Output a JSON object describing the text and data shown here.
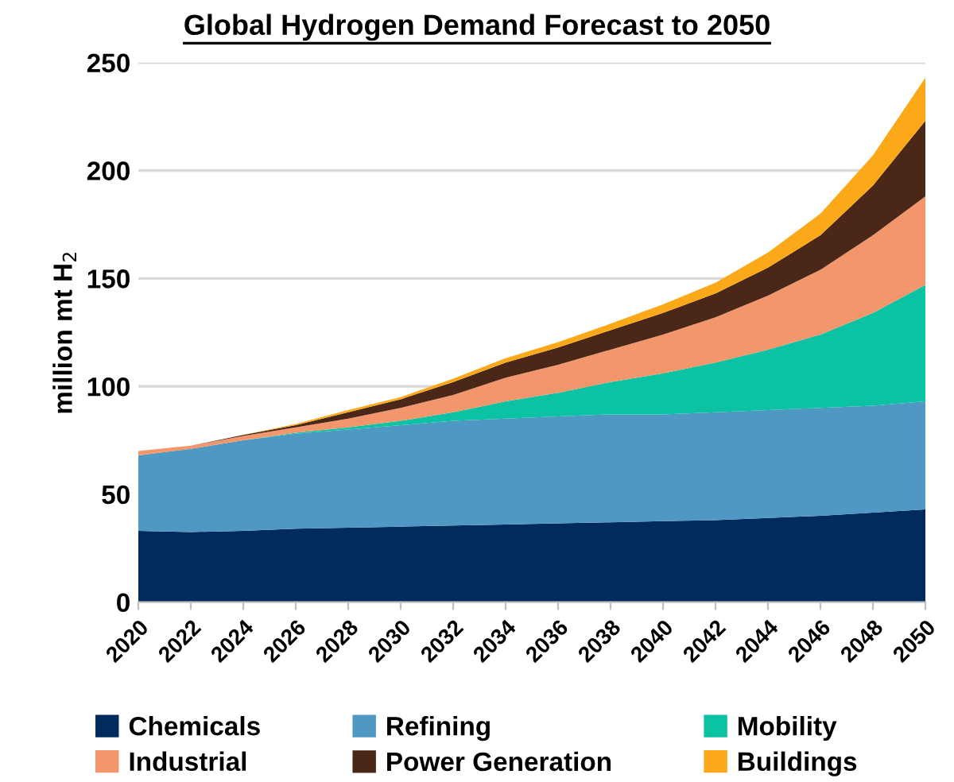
{
  "chart_data": {
    "type": "area",
    "stacked": true,
    "title": "Global Hydrogen Demand Forecast to 2050",
    "ylabel": "million mt H$_{2}$",
    "x": [
      2020,
      2022,
      2024,
      2026,
      2028,
      2030,
      2032,
      2034,
      2036,
      2038,
      2040,
      2042,
      2044,
      2046,
      2048,
      2050
    ],
    "xlim": [
      2020,
      2050
    ],
    "xticks": [
      2020,
      2022,
      2024,
      2026,
      2028,
      2030,
      2032,
      2034,
      2036,
      2038,
      2040,
      2042,
      2044,
      2046,
      2048,
      2050
    ],
    "ylim": [
      0,
      250
    ],
    "yticks": [
      0,
      50,
      100,
      150,
      200,
      250
    ],
    "grid": "y",
    "legend": "bottom",
    "series": [
      {
        "name": "Chemicals",
        "color": "#002b5c",
        "values": [
          33,
          32.5,
          33,
          34,
          34.5,
          35,
          35.5,
          36,
          36.5,
          37,
          37.5,
          38,
          39,
          40,
          41.5,
          43
        ]
      },
      {
        "name": "Refining",
        "color": "#4f98c3",
        "values": [
          35,
          38.5,
          42,
          44,
          45.5,
          47,
          48.5,
          49,
          49.5,
          50,
          49.5,
          50,
          50,
          50,
          49.5,
          50
        ]
      },
      {
        "name": "Mobility",
        "color": "#0bc3a3",
        "values": [
          0,
          0,
          0,
          0.5,
          1,
          2,
          4,
          8,
          11,
          15,
          19,
          23,
          28,
          34,
          43,
          54
        ]
      },
      {
        "name": "Industrial",
        "color": "#f4966c",
        "values": [
          2,
          1.5,
          2,
          2.5,
          4,
          6,
          8,
          11,
          13,
          15,
          18,
          21,
          25,
          30,
          36,
          41
        ]
      },
      {
        "name": "Power Generation",
        "color": "#4a2716",
        "values": [
          0,
          0,
          0.5,
          1,
          3,
          4,
          6,
          7,
          8,
          9,
          10,
          11,
          13,
          16,
          23,
          35
        ]
      },
      {
        "name": "Buildings",
        "color": "#fba919",
        "values": [
          0,
          0,
          0,
          0.5,
          1,
          1,
          1.5,
          2,
          2.5,
          3,
          4,
          5,
          7,
          10,
          14,
          20
        ]
      }
    ]
  }
}
